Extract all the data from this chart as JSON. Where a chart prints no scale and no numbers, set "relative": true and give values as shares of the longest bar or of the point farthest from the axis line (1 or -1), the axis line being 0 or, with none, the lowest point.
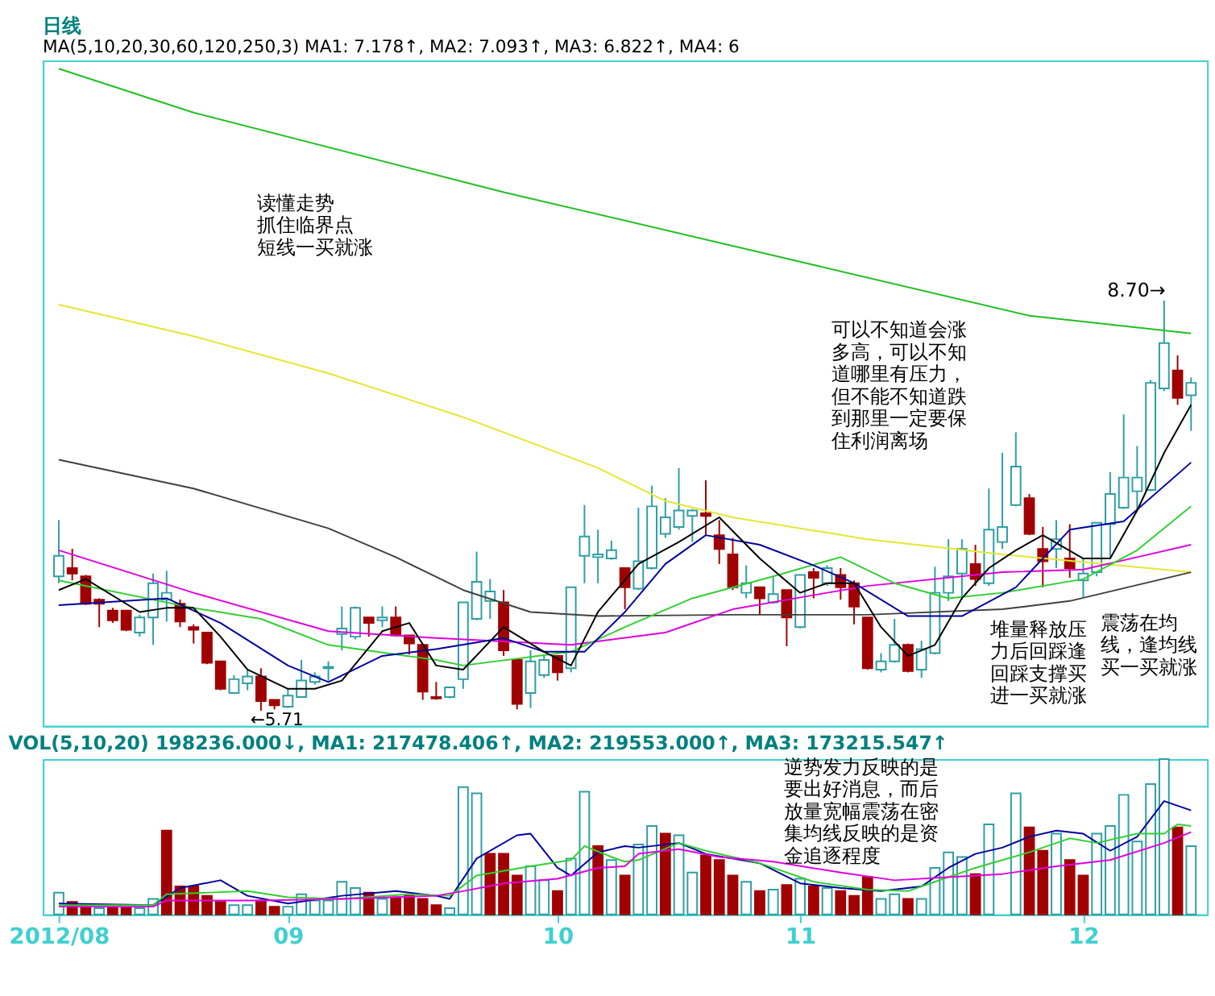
{
  "chart_data": [
    {
      "type": "candlestick",
      "title": "日线",
      "subtitle": "MA(5,10,20,30,60,120,250,3)  MA1: 7.178↑, MA2: 7.093↑, MA3: 6.822↑, MA4: 6",
      "categories": [
        "2012/08",
        null,
        null,
        null,
        null,
        null,
        null,
        null,
        null,
        null,
        null,
        null,
        null,
        null,
        null,
        null,
        null,
        "09",
        null,
        null,
        null,
        null,
        null,
        null,
        null,
        null,
        null,
        null,
        null,
        null,
        null,
        null,
        null,
        null,
        null,
        null,
        null,
        "10",
        null,
        null,
        null,
        null,
        null,
        null,
        null,
        null,
        null,
        null,
        null,
        null,
        null,
        null,
        null,
        null,
        null,
        "11",
        null,
        null,
        null,
        null,
        null,
        null,
        null,
        null,
        null,
        null,
        null,
        null,
        null,
        null,
        null,
        null,
        null,
        null,
        null,
        null,
        "12",
        null,
        null,
        null,
        null,
        null,
        null,
        null,
        null
      ],
      "ohlc": [
        [
          6.69,
          7.1,
          6.64,
          6.84
        ],
        [
          6.75,
          6.89,
          6.66,
          6.71
        ],
        [
          6.69,
          6.7,
          6.48,
          6.49
        ],
        [
          6.52,
          6.53,
          6.32,
          6.49
        ],
        [
          6.44,
          6.46,
          6.35,
          6.37
        ],
        [
          6.44,
          6.44,
          6.29,
          6.3
        ],
        [
          6.28,
          6.41,
          6.25,
          6.39
        ],
        [
          6.39,
          6.71,
          6.19,
          6.64
        ],
        [
          6.52,
          6.73,
          6.36,
          6.57
        ],
        [
          6.49,
          6.52,
          6.32,
          6.36
        ],
        [
          6.32,
          6.34,
          6.2,
          6.3
        ],
        [
          6.28,
          6.28,
          6.05,
          6.06
        ],
        [
          6.07,
          6.07,
          5.86,
          5.87
        ],
        [
          5.84,
          5.97,
          5.84,
          5.94
        ],
        [
          5.91,
          6.01,
          5.86,
          5.96
        ],
        [
          5.96,
          6.02,
          5.71,
          5.78
        ],
        [
          5.79,
          5.79,
          5.72,
          5.75
        ],
        [
          5.74,
          5.87,
          5.73,
          5.82
        ],
        [
          5.81,
          6.08,
          5.81,
          5.93
        ],
        [
          5.92,
          5.99,
          5.9,
          5.96
        ],
        [
          6.02,
          6.07,
          5.93,
          6.03
        ],
        [
          6.27,
          6.47,
          6.15,
          6.31
        ],
        [
          6.25,
          6.47,
          6.23,
          6.46
        ],
        [
          6.39,
          6.39,
          6.25,
          6.35
        ],
        [
          6.37,
          6.47,
          6.32,
          6.39
        ],
        [
          6.39,
          6.47,
          6.25,
          6.26
        ],
        [
          6.26,
          6.26,
          6.12,
          6.2
        ],
        [
          6.19,
          6.19,
          5.79,
          5.85
        ],
        [
          5.81,
          5.92,
          5.79,
          5.8
        ],
        [
          5.81,
          5.88,
          5.8,
          5.88
        ],
        [
          5.94,
          6.5,
          5.87,
          6.5
        ],
        [
          6.38,
          6.87,
          6.37,
          6.65
        ],
        [
          6.51,
          6.67,
          6.38,
          6.58
        ],
        [
          6.5,
          6.59,
          6.11,
          6.15
        ],
        [
          6.08,
          6.08,
          5.72,
          5.76
        ],
        [
          5.84,
          6.15,
          5.73,
          6.07
        ],
        [
          5.97,
          6.11,
          5.95,
          6.08
        ],
        [
          6.11,
          6.11,
          5.93,
          5.99
        ],
        [
          6.02,
          6.61,
          5.99,
          6.61
        ],
        [
          6.84,
          7.21,
          6.64,
          6.98
        ],
        [
          6.83,
          7.03,
          6.64,
          6.85
        ],
        [
          6.82,
          6.95,
          6.81,
          6.88
        ],
        [
          6.75,
          6.75,
          6.45,
          6.61
        ],
        [
          6.6,
          7.19,
          6.59,
          6.8
        ],
        [
          6.75,
          7.35,
          6.74,
          7.2
        ],
        [
          7.0,
          7.26,
          6.97,
          7.12
        ],
        [
          7.05,
          7.48,
          7.03,
          7.17
        ],
        [
          7.13,
          7.18,
          6.94,
          7.17
        ],
        [
          7.15,
          7.39,
          6.99,
          7.13
        ],
        [
          6.99,
          7.1,
          6.78,
          6.89
        ],
        [
          6.85,
          6.97,
          6.59,
          6.61
        ],
        [
          6.57,
          6.77,
          6.53,
          6.64
        ],
        [
          6.61,
          6.61,
          6.41,
          6.53
        ],
        [
          6.5,
          6.69,
          6.49,
          6.56
        ],
        [
          6.59,
          6.59,
          6.18,
          6.39
        ],
        [
          6.32,
          6.7,
          6.31,
          6.7
        ],
        [
          6.72,
          6.75,
          6.53,
          6.68
        ],
        [
          6.64,
          6.77,
          6.62,
          6.75
        ],
        [
          6.7,
          6.75,
          6.52,
          6.61
        ],
        [
          6.64,
          6.66,
          6.34,
          6.47
        ],
        [
          6.39,
          6.39,
          6.01,
          6.02
        ],
        [
          6.01,
          6.13,
          5.99,
          6.07
        ],
        [
          6.07,
          6.38,
          6.06,
          6.19
        ],
        [
          6.19,
          6.2,
          5.99,
          6.0
        ],
        [
          6.01,
          6.22,
          5.95,
          6.16
        ],
        [
          6.13,
          6.76,
          6.12,
          6.57
        ],
        [
          6.57,
          6.96,
          6.51,
          6.69
        ],
        [
          6.71,
          6.96,
          6.52,
          6.89
        ],
        [
          6.78,
          6.92,
          6.62,
          6.67
        ],
        [
          6.64,
          7.33,
          6.62,
          7.03
        ],
        [
          6.94,
          7.59,
          6.89,
          7.05
        ],
        [
          7.21,
          7.74,
          7.2,
          7.49
        ],
        [
          7.26,
          7.29,
          6.99,
          7.0
        ],
        [
          6.89,
          7.05,
          6.61,
          6.8
        ],
        [
          6.89,
          7.1,
          6.75,
          6.96
        ],
        [
          6.82,
          7.07,
          6.68,
          6.75
        ],
        [
          6.66,
          6.82,
          6.54,
          6.71
        ],
        [
          6.72,
          7.08,
          6.69,
          7.08
        ],
        [
          7.07,
          7.45,
          6.82,
          7.29
        ],
        [
          7.19,
          7.87,
          7.18,
          7.41
        ],
        [
          7.31,
          7.64,
          7.17,
          7.41
        ],
        [
          7.32,
          8.12,
          7.31,
          8.1
        ],
        [
          8.06,
          8.7,
          8.04,
          8.39
        ],
        [
          8.19,
          8.3,
          7.94,
          7.99
        ],
        [
          8.01,
          8.14,
          7.75,
          8.1
        ]
      ],
      "colors": [
        "#2e9ea4",
        "#a00000",
        "#a00000",
        "#a00000",
        "#a00000",
        "#a00000",
        "#2e9ea4",
        "#2e9ea4",
        "#2e9ea4",
        "#a00000",
        "#a00000",
        "#a00000",
        "#a00000",
        "#2e9ea4",
        "#2e9ea4",
        "#a00000",
        "#a00000",
        "#2e9ea4",
        "#2e9ea4",
        "#2e9ea4",
        "#2e9ea4",
        "#2e9ea4",
        "#2e9ea4",
        "#a00000",
        "#2e9ea4",
        "#a00000",
        "#a00000",
        "#a00000",
        "#a00000",
        "#2e9ea4",
        "#2e9ea4",
        "#2e9ea4",
        "#2e9ea4",
        "#a00000",
        "#a00000",
        "#2e9ea4",
        "#2e9ea4",
        "#a00000",
        "#2e9ea4",
        "#2e9ea4",
        "#2e9ea4",
        "#2e9ea4",
        "#a00000",
        "#2e9ea4",
        "#2e9ea4",
        "#2e9ea4",
        "#2e9ea4",
        "#2e9ea4",
        "#a00000",
        "#a00000",
        "#a00000",
        "#2e9ea4",
        "#a00000",
        "#2e9ea4",
        "#a00000",
        "#2e9ea4",
        "#a00000",
        "#2e9ea4",
        "#a00000",
        "#a00000",
        "#a00000",
        "#2e9ea4",
        "#2e9ea4",
        "#a00000",
        "#2e9ea4",
        "#2e9ea4",
        "#2e9ea4",
        "#2e9ea4",
        "#a00000",
        "#2e9ea4",
        "#2e9ea4",
        "#2e9ea4",
        "#a00000",
        "#a00000",
        "#2e9ea4",
        "#a00000",
        "#2e9ea4",
        "#2e9ea4",
        "#2e9ea4",
        "#2e9ea4",
        "#2e9ea4",
        "#2e9ea4",
        "#2e9ea4",
        "#a00000",
        "#2e9ea4"
      ],
      "series": [
        {
          "type": "line",
          "color": "#20c020",
          "values": [
            10.39,
            null,
            null,
            null,
            null,
            null,
            null,
            null,
            null,
            null,
            10.07,
            null,
            null,
            null,
            null,
            null,
            null,
            null,
            null,
            null,
            null,
            null,
            null,
            null,
            null,
            null,
            null,
            null,
            null,
            null,
            null,
            null,
            null,
            9.49,
            null,
            null,
            null,
            null,
            null,
            null,
            null,
            null,
            null,
            null,
            null,
            null,
            null,
            null,
            null,
            null,
            null,
            null,
            null,
            null,
            null,
            null,
            8.96,
            null,
            null,
            null,
            null,
            null,
            null,
            null,
            null,
            null,
            null,
            null,
            null,
            null,
            null,
            null,
            8.59,
            null,
            null,
            null,
            null,
            null,
            null,
            null,
            null,
            null,
            null,
            null,
            8.46
          ]
        },
        {
          "type": "line",
          "color": "#e6e632",
          "values": [
            8.67,
            null,
            null,
            null,
            null,
            null,
            null,
            null,
            null,
            null,
            8.44,
            null,
            null,
            null,
            null,
            null,
            null,
            null,
            null,
            null,
            8.17,
            null,
            null,
            null,
            null,
            null,
            null,
            null,
            null,
            null,
            7.85,
            null,
            null,
            null,
            null,
            null,
            null,
            null,
            null,
            null,
            7.48,
            null,
            null,
            null,
            null,
            7.24,
            null,
            null,
            null,
            null,
            7.12,
            null,
            null,
            null,
            null,
            null,
            null,
            null,
            null,
            null,
            6.96,
            null,
            null,
            null,
            null,
            null,
            null,
            null,
            null,
            null,
            6.85,
            null,
            null,
            null,
            null,
            null,
            null,
            null,
            null,
            null,
            null,
            null,
            null,
            null,
            6.72
          ]
        },
        {
          "type": "line",
          "color": "#404040",
          "values": [
            7.54,
            null,
            null,
            null,
            null,
            null,
            null,
            null,
            null,
            null,
            7.33,
            null,
            null,
            null,
            null,
            null,
            null,
            null,
            null,
            null,
            7.04,
            null,
            null,
            null,
            null,
            6.83,
            null,
            null,
            null,
            null,
            6.59,
            null,
            null,
            null,
            null,
            6.43,
            null,
            null,
            null,
            null,
            6.4,
            null,
            null,
            null,
            null,
            null,
            null,
            null,
            null,
            null,
            6.41,
            null,
            null,
            null,
            null,
            null,
            null,
            null,
            null,
            null,
            6.41,
            null,
            null,
            null,
            null,
            null,
            null,
            null,
            null,
            null,
            6.45,
            null,
            null,
            null,
            null,
            6.51,
            null,
            null,
            null,
            null,
            null,
            null,
            null,
            null,
            6.72
          ]
        },
        {
          "type": "line",
          "color": "#e000e0",
          "values": [
            6.88,
            null,
            null,
            null,
            null,
            null,
            null,
            null,
            null,
            null,
            6.57,
            null,
            null,
            null,
            null,
            null,
            null,
            null,
            null,
            null,
            6.29,
            null,
            null,
            null,
            null,
            null,
            null,
            null,
            6.24,
            null,
            null,
            null,
            null,
            null,
            null,
            null,
            null,
            null,
            6.19,
            null,
            null,
            null,
            null,
            null,
            null,
            6.28,
            null,
            null,
            null,
            null,
            6.45,
            null,
            null,
            null,
            null,
            null,
            null,
            6.57,
            null,
            null,
            6.62,
            null,
            null,
            null,
            null,
            null,
            null,
            null,
            null,
            null,
            6.72,
            null,
            null,
            null,
            null,
            null,
            6.74,
            null,
            null,
            null,
            6.83,
            null,
            null,
            null,
            6.92
          ]
        },
        {
          "type": "line",
          "color": "#30d030",
          "values": [
            6.66,
            null,
            null,
            null,
            null,
            null,
            null,
            null,
            null,
            null,
            6.46,
            null,
            null,
            null,
            null,
            6.38,
            null,
            null,
            null,
            null,
            6.19,
            null,
            null,
            null,
            null,
            null,
            null,
            null,
            6.08,
            null,
            6.04,
            null,
            null,
            null,
            null,
            null,
            null,
            null,
            6.14,
            null,
            null,
            null,
            6.32,
            null,
            null,
            null,
            null,
            6.53,
            null,
            null,
            null,
            null,
            null,
            6.69,
            null,
            null,
            null,
            null,
            6.83,
            null,
            null,
            null,
            6.64,
            null,
            null,
            null,
            6.53,
            null,
            null,
            null,
            6.57,
            null,
            null,
            null,
            null,
            null,
            6.67,
            null,
            null,
            null,
            6.88,
            null,
            null,
            null,
            7.2
          ]
        },
        {
          "type": "line",
          "color": "#0000a0",
          "values": [
            6.48,
            null,
            null,
            null,
            null,
            null,
            null,
            null,
            6.53,
            null,
            null,
            null,
            6.35,
            null,
            null,
            null,
            null,
            6.04,
            null,
            null,
            5.92,
            null,
            null,
            null,
            6.11,
            null,
            null,
            null,
            6.16,
            null,
            null,
            null,
            null,
            6.24,
            null,
            null,
            6.14,
            null,
            null,
            6.14,
            null,
            null,
            6.43,
            null,
            null,
            6.78,
            null,
            null,
            6.99,
            null,
            null,
            null,
            6.92,
            null,
            null,
            null,
            6.77,
            null,
            null,
            6.64,
            null,
            null,
            null,
            6.4,
            null,
            null,
            null,
            6.4,
            null,
            null,
            null,
            6.61,
            null,
            null,
            null,
            7.03,
            null,
            null,
            null,
            7.09,
            null,
            null,
            null,
            null,
            7.52
          ]
        },
        {
          "type": "line",
          "color": "#000000",
          "values": [
            6.59,
            null,
            6.67,
            null,
            null,
            null,
            6.43,
            null,
            6.46,
            null,
            6.46,
            null,
            6.25,
            null,
            6.01,
            null,
            null,
            5.87,
            null,
            5.87,
            null,
            5.93,
            null,
            null,
            6.29,
            null,
            6.35,
            null,
            6.04,
            null,
            6.01,
            null,
            null,
            6.32,
            null,
            null,
            6.14,
            null,
            6.04,
            null,
            6.43,
            null,
            null,
            6.78,
            null,
            null,
            6.94,
            null,
            null,
            7.12,
            null,
            null,
            6.82,
            null,
            null,
            6.57,
            null,
            6.64,
            null,
            6.64,
            null,
            6.32,
            null,
            6.11,
            null,
            6.19,
            null,
            6.53,
            null,
            6.75,
            null,
            6.88,
            null,
            6.99,
            null,
            null,
            6.82,
            null,
            6.82,
            null,
            7.17,
            null,
            7.59,
            null,
            7.94
          ]
        }
      ],
      "ylim": [
        5.6,
        10.45
      ],
      "tick_labels": false,
      "grid": false,
      "annotations": [
        "读懂走势抓住临界点短线一买就涨",
        "可以不知道会涨多高，可以不知道哪里有压力，但不能不知道跌到那里一定要保住利润离场",
        "震荡在均线，逢均线买一买就涨",
        "堆量释放压力后回踩逢回踩支撑买进一买就涨",
        "8.70→",
        {
          "text": "←5.71",
          "y": 5.71
        }
      ]
    },
    {
      "type": "bar",
      "relative": true,
      "title": "VOL(5,10,20) 198236.000↓, MA1: 217478.406↑, MA2: 219553.000↑, MA3: 173215.547↑",
      "categories": [
        "2012/08",
        null,
        null,
        null,
        null,
        null,
        null,
        null,
        null,
        null,
        null,
        null,
        null,
        null,
        null,
        null,
        null,
        "09",
        null,
        null,
        null,
        null,
        null,
        null,
        null,
        null,
        null,
        null,
        null,
        null,
        null,
        null,
        null,
        null,
        null,
        null,
        null,
        "10",
        null,
        null,
        null,
        null,
        null,
        null,
        null,
        null,
        null,
        null,
        null,
        null,
        null,
        null,
        null,
        null,
        null,
        "11",
        null,
        null,
        null,
        null,
        null,
        null,
        null,
        null,
        null,
        null,
        null,
        null,
        null,
        null,
        null,
        null,
        null,
        null,
        null,
        null,
        "12",
        null,
        null,
        null,
        null,
        null,
        null,
        null,
        null
      ],
      "series": [
        {
          "type": "bar",
          "values": [
            0.14,
            0.08,
            0.06,
            0.04,
            0.04,
            0.04,
            0.04,
            0.1,
            0.54,
            0.18,
            0.18,
            0.12,
            0.08,
            0.06,
            0.06,
            0.09,
            0.05,
            0.05,
            0.13,
            0.09,
            0.09,
            0.21,
            0.17,
            0.14,
            0.1,
            0.11,
            0.12,
            0.1,
            0.06,
            0.04,
            0.82,
            0.78,
            0.39,
            0.39,
            0.25,
            0.31,
            0.22,
            0.15,
            0.36,
            0.79,
            0.44,
            0.35,
            0.25,
            0.45,
            0.57,
            0.52,
            0.51,
            0.27,
            0.38,
            0.35,
            0.25,
            0.21,
            0.15,
            0.16,
            0.19,
            0.23,
            0.18,
            0.17,
            0.15,
            0.12,
            0.24,
            0.1,
            0.13,
            0.1,
            0.1,
            0.3,
            0.4,
            0.37,
            0.26,
            0.58,
            null,
            0.78,
            0.56,
            0.41,
            0.52,
            0.35,
            0.25,
            0.52,
            0.57,
            0.77,
            0.47,
            0.84,
            1.0,
            0.56,
            0.44
          ],
          "colors": [
            "#2e9ea4",
            "#a00000",
            "#a00000",
            "#2e9ea4",
            "#a00000",
            "#a00000",
            "#2e9ea4",
            "#2e9ea4",
            "#a00000",
            "#a00000",
            "#a00000",
            "#a00000",
            "#a00000",
            "#2e9ea4",
            "#2e9ea4",
            "#a00000",
            "#a00000",
            "#2e9ea4",
            "#2e9ea4",
            "#2e9ea4",
            "#2e9ea4",
            "#2e9ea4",
            "#2e9ea4",
            "#a00000",
            "#2e9ea4",
            "#a00000",
            "#a00000",
            "#a00000",
            "#a00000",
            "#2e9ea4",
            "#2e9ea4",
            "#2e9ea4",
            "#a00000",
            "#a00000",
            "#a00000",
            "#2e9ea4",
            "#2e9ea4",
            "#a00000",
            "#2e9ea4",
            "#2e9ea4",
            "#a00000",
            "#2e9ea4",
            "#a00000",
            "#2e9ea4",
            "#2e9ea4",
            "#a00000",
            "#2e9ea4",
            "#2e9ea4",
            "#a00000",
            "#a00000",
            "#a00000",
            "#2e9ea4",
            "#a00000",
            "#2e9ea4",
            "#a00000",
            "#2e9ea4",
            "#a00000",
            "#2e9ea4",
            "#a00000",
            "#a00000",
            "#a00000",
            "#2e9ea4",
            "#2e9ea4",
            "#a00000",
            "#2e9ea4",
            "#2e9ea4",
            "#2e9ea4",
            "#2e9ea4",
            "#a00000",
            "#2e9ea4",
            "#2e9ea4",
            "#2e9ea4",
            "#a00000",
            "#a00000",
            "#2e9ea4",
            "#a00000",
            "#a00000",
            "#2e9ea4",
            "#2e9ea4",
            "#2e9ea4",
            "#2e9ea4",
            "#2e9ea4",
            "#2e9ea4",
            "#a00000",
            "#2e9ea4"
          ]
        },
        {
          "type": "line",
          "color": "#0000a0",
          "values": [
            0.07,
            null,
            null,
            null,
            null,
            null,
            null,
            0.06,
            null,
            0.17,
            null,
            null,
            0.22,
            null,
            0.12,
            null,
            null,
            0.07,
            null,
            null,
            null,
            0.12,
            null,
            null,
            null,
            0.15,
            null,
            null,
            0.12,
            0.1,
            null,
            0.36,
            null,
            null,
            0.51,
            0.52,
            null,
            0.3,
            0.25,
            null,
            0.4,
            null,
            0.44,
            0.43,
            null,
            null,
            0.46,
            null,
            0.39,
            null,
            null,
            null,
            0.33,
            null,
            null,
            0.2,
            null,
            null,
            0.17,
            null,
            null,
            0.15,
            null,
            null,
            0.18,
            null,
            0.3,
            null,
            0.39,
            null,
            0.43,
            null,
            0.5,
            null,
            0.54,
            null,
            0.52,
            null,
            0.41,
            null,
            0.5,
            null,
            0.73,
            null,
            0.67
          ]
        },
        {
          "type": "line",
          "color": "#30d030",
          "values": [
            0.06,
            null,
            null,
            null,
            null,
            null,
            null,
            0.06,
            0.13,
            null,
            null,
            null,
            null,
            null,
            0.15,
            null,
            null,
            0.11,
            null,
            null,
            null,
            0.1,
            null,
            null,
            null,
            null,
            0.13,
            null,
            null,
            0.12,
            null,
            0.25,
            null,
            null,
            null,
            0.31,
            null,
            null,
            0.35,
            0.44,
            null,
            0.37,
            0.34,
            0.35,
            null,
            null,
            0.46,
            null,
            0.41,
            null,
            null,
            null,
            0.33,
            null,
            null,
            null,
            0.21,
            null,
            null,
            null,
            0.16,
            null,
            null,
            0.15,
            null,
            0.21,
            null,
            null,
            0.3,
            null,
            null,
            null,
            0.4,
            null,
            null,
            0.49,
            null,
            0.46,
            null,
            null,
            0.52,
            null,
            0.52,
            0.58,
            0.57
          ]
        },
        {
          "type": "line",
          "color": "#e000e0",
          "values": [
            0.05,
            null,
            null,
            null,
            null,
            null,
            null,
            0.05,
            0.09,
            null,
            null,
            null,
            null,
            null,
            null,
            0.09,
            null,
            null,
            null,
            null,
            null,
            0.1,
            null,
            null,
            null,
            null,
            null,
            null,
            0.12,
            null,
            0.15,
            null,
            null,
            0.2,
            null,
            null,
            null,
            0.23,
            null,
            null,
            0.3,
            null,
            0.31,
            0.39,
            null,
            null,
            0.42,
            null,
            null,
            0.37,
            null,
            null,
            null,
            0.34,
            null,
            null,
            null,
            null,
            0.27,
            null,
            null,
            null,
            0.22,
            null,
            null,
            null,
            0.24,
            null,
            null,
            null,
            0.26,
            null,
            null,
            null,
            0.31,
            null,
            null,
            null,
            0.35,
            null,
            null,
            null,
            0.46,
            null,
            0.53
          ]
        }
      ],
      "tick_labels": "x",
      "grid": false,
      "annotations": [
        "逆势发力反映的是要出好消息，而后放量宽幅震荡在密集均线反映的是资金追逐程度"
      ]
    }
  ]
}
